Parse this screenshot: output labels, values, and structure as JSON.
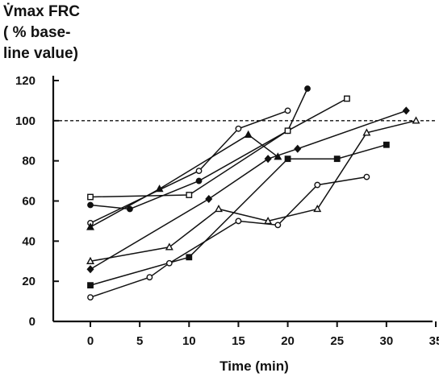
{
  "chart_data": {
    "type": "line",
    "ylabel_lines": [
      "V̇max FRC",
      "( % base-",
      "line value)"
    ],
    "xlabel": "Time (min)",
    "xlim": [
      0,
      35
    ],
    "ylim": [
      0,
      120
    ],
    "xticks": [
      0,
      5,
      10,
      15,
      20,
      25,
      30,
      35
    ],
    "yticks": [
      0,
      20,
      40,
      60,
      80,
      100,
      120
    ],
    "reference_line": {
      "y": 100,
      "style": "dashed"
    },
    "series": [
      {
        "marker": "circle-filled",
        "x": [
          0,
          4,
          11,
          20,
          22
        ],
        "y": [
          58,
          56,
          70,
          95,
          116
        ]
      },
      {
        "marker": "circle-open",
        "x": [
          0,
          11,
          15,
          20
        ],
        "y": [
          49,
          75,
          96,
          105
        ]
      },
      {
        "marker": "square-open",
        "x": [
          0,
          10,
          20,
          26
        ],
        "y": [
          62,
          63,
          95,
          111
        ]
      },
      {
        "marker": "triangle-filled",
        "x": [
          0,
          7,
          16,
          19
        ],
        "y": [
          47,
          66,
          93,
          82
        ]
      },
      {
        "marker": "diamond-filled",
        "x": [
          0,
          12,
          18,
          21,
          32
        ],
        "y": [
          26,
          61,
          81,
          86,
          105
        ]
      },
      {
        "marker": "square-filled",
        "x": [
          0,
          10,
          20,
          25,
          30
        ],
        "y": [
          18,
          32,
          81,
          81,
          88
        ]
      },
      {
        "marker": "triangle-open",
        "x": [
          0,
          8,
          13,
          18,
          23,
          28,
          33
        ],
        "y": [
          30,
          37,
          56,
          50,
          56,
          94,
          100
        ]
      },
      {
        "marker": "circle-open",
        "x": [
          0,
          6,
          8,
          15,
          19,
          23,
          28
        ],
        "y": [
          12,
          22,
          29,
          50,
          48,
          68,
          72
        ]
      }
    ]
  }
}
